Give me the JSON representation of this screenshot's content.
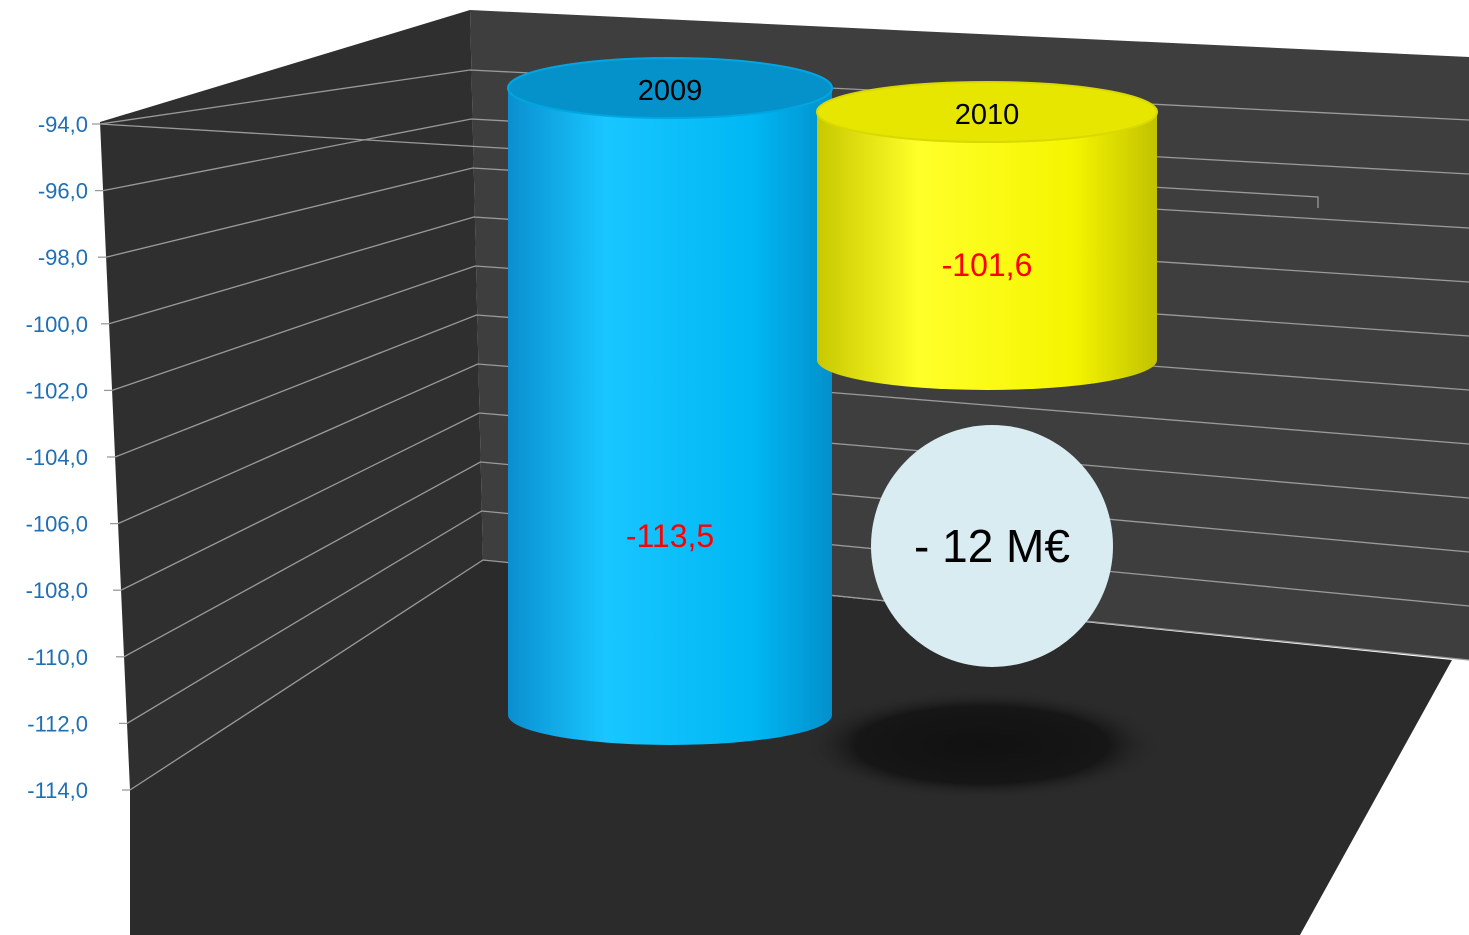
{
  "chart_data": {
    "type": "bar",
    "style": "3d-cylinder",
    "categories": [
      "2009",
      "2010"
    ],
    "values": [
      -113.5,
      -101.6
    ],
    "value_labels": [
      "-113,5",
      "-101,6"
    ],
    "y_ticks": [
      "-94,0",
      "-96,0",
      "-98,0",
      "-100,0",
      "-102,0",
      "-104,0",
      "-106,0",
      "-108,0",
      "-110,0",
      "-112,0",
      "-114,0"
    ],
    "ylim": [
      -114,
      -94
    ],
    "grid": true,
    "annotation": "- 12 M€",
    "colors": {
      "bar_2009": "#00b8f4",
      "bar_2010": "#f5f500",
      "tick_label": "#1f6fb4",
      "value_label": "#ff0000",
      "wall": "#3a3a3a",
      "floor": "#2b2b2b",
      "bubble": "#d9ecf2"
    }
  }
}
